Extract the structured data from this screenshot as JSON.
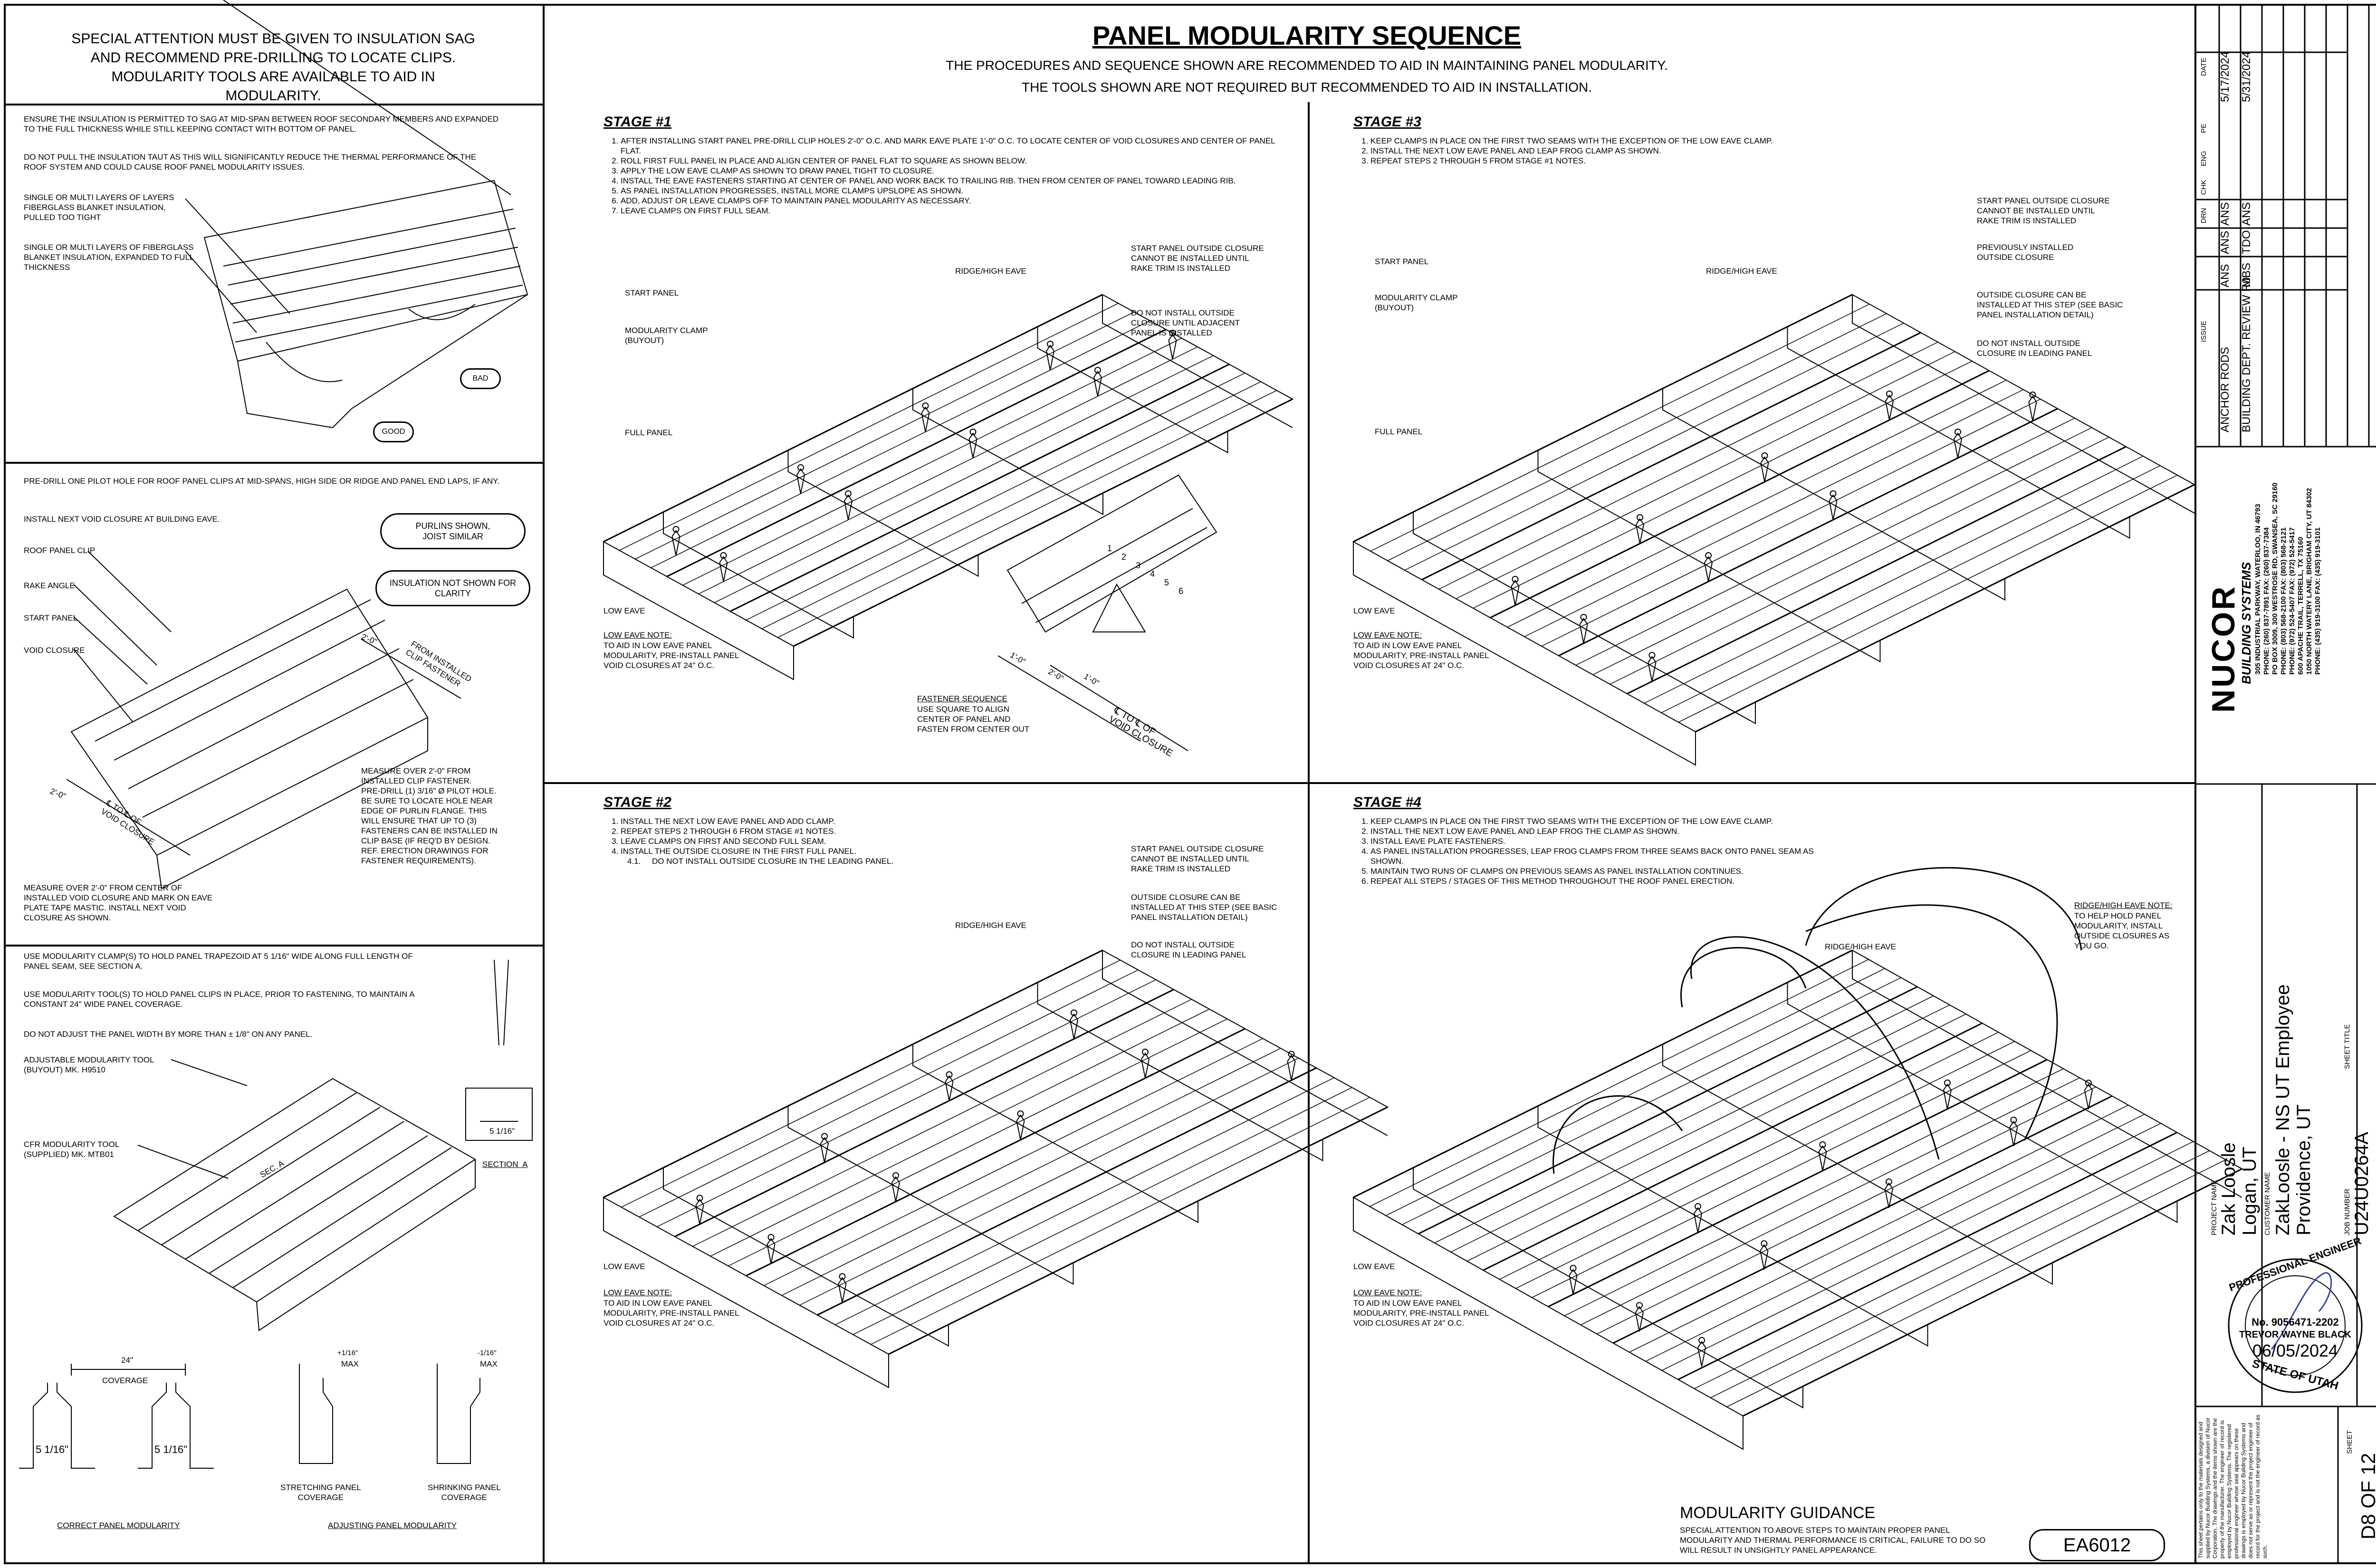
{
  "header": {
    "title": "PANEL MODULARITY SEQUENCE",
    "subtitle_line1": "THE PROCEDURES AND SEQUENCE SHOWN ARE RECOMMENDED TO AID IN MAINTAINING PANEL MODULARITY.",
    "subtitle_line2": "THE TOOLS SHOWN ARE NOT REQUIRED BUT RECOMMENDED TO AID IN INSTALLATION."
  },
  "left_panel": {
    "special_attention": "SPECIAL ATTENTION MUST BE GIVEN TO INSULATION SAG AND RECOMMEND PRE-DRILLING TO LOCATE CLIPS. MODULARITY TOOLS ARE AVAILABLE TO AID IN MODULARITY.",
    "insulation_note1": "ENSURE THE INSULATION IS PERMITTED TO SAG AT MID-SPAN BETWEEN ROOF SECONDARY MEMBERS AND EXPANDED TO THE FULL THICKNESS WHILE STILL KEEPING CONTACT WITH BOTTOM OF PANEL.",
    "insulation_note2": "DO NOT PULL THE INSULATION TAUT AS THIS WILL SIGNIFICANTLY REDUCE THE THERMAL PERFORMANCE OF THE ROOF SYSTEM AND COULD CAUSE ROOF PANEL MODULARITY ISSUES.",
    "callout_tight": "SINGLE OR MULTI LAYERS OF LAYERS\nFIBERGLASS BLANKET INSULATION,\nPULLED TOO TIGHT",
    "callout_expanded": "SINGLE OR MULTI LAYERS OF FIBERGLASS\nBLANKET INSULATION, EXPANDED TO FULL\nTHICKNESS",
    "bad_label": "BAD",
    "good_label": "GOOD",
    "predrill_note1": "PRE-DRILL ONE PILOT HOLE FOR ROOF PANEL CLIPS AT MID-SPANS, HIGH SIDE OR RIDGE AND PANEL END LAPS, IF ANY.",
    "predrill_note2": "INSTALL NEXT VOID CLOSURE AT BUILDING EAVE.",
    "bubble_purlins": "PURLINS SHOWN,\nJOIST SIMILAR",
    "bubble_insulation": "INSULATION NOT SHOWN FOR\nCLARITY",
    "label_roof_clip": "ROOF PANEL CLIP",
    "label_rake_angle": "RAKE ANGLE",
    "label_start_panel": "START PANEL",
    "label_void_closure": "VOID CLOSURE",
    "dim_from_clip_val": "2'-0\"",
    "dim_from_clip_text": "FROM INSTALLED\nCLIP FASTENER",
    "dim_void_val": "2'-0\"",
    "dim_void_text": "℄ TO ℄ OF\nVOID CLOSURE",
    "measure_clip_note": "MEASURE OVER 2'-0\" FROM\nINSTALLED CLIP FASTENER.\nPRE-DRILL (1) 3/16\" Ø PILOT HOLE.\nBE SURE TO LOCATE HOLE NEAR\nEDGE OF PURLIN FLANGE. THIS\nWILL ENSURE THAT UP TO (3)\nFASTENERS CAN BE INSTALLED IN\nCLIP BASE (IF REQ'D BY DESIGN.\nREF. ERECTION DRAWINGS FOR\nFASTENER REQUIREMENTS).",
    "measure_void_note": "MEASURE OVER 2'-0\" FROM CENTER OF\nINSTALLED VOID CLOSURE AND MARK ON EAVE\nPLATE TAPE MASTIC. INSTALL NEXT VOID\nCLOSURE AS SHOWN.",
    "clamp_note1": "USE MODULARITY CLAMP(S) TO HOLD PANEL TRAPEZOID AT 5 1/16\" WIDE ALONG FULL LENGTH OF PANEL SEAM, SEE SECTION A.",
    "clamp_note2": "USE MODULARITY TOOL(S) TO HOLD PANEL CLIPS IN PLACE, PRIOR TO FASTENING, TO MAINTAIN A CONSTANT 24\" WIDE PANEL COVERAGE.",
    "clamp_note3": "DO NOT ADJUST THE PANEL WIDTH BY MORE THAN ± 1/8\" ON ANY PANEL.",
    "label_adj_tool": "ADJUSTABLE MODULARITY TOOL\n(BUYOUT) MK. H9510",
    "label_cfr_tool": "CFR MODULARITY TOOL\n(SUPPLIED) MK. MTB01",
    "section_label": "SECTION  A",
    "section_dim": "5 1/16\"",
    "sec_a_tag": "SEC. A",
    "coverage_dim": "24\"",
    "coverage_label": "COVERAGE",
    "trap_dim": "5 1/16\"",
    "max_plus": "+1/16\"",
    "max_minus": "-1/16\"",
    "max_label": "MAX",
    "stretching_label": "STRETCHING PANEL\nCOVERAGE",
    "shrinking_label": "SHRINKING PANEL\nCOVERAGE",
    "correct_label": "CORRECT PANEL MODULARITY",
    "adjusting_label": "ADJUSTING PANEL MODULARITY"
  },
  "stage1": {
    "title": "STAGE #1",
    "steps": [
      "AFTER INSTALLING START PANEL PRE-DRILL CLIP HOLES 2'-0\" O.C. AND MARK EAVE PLATE 1'-0\" O.C. TO LOCATE CENTER OF VOID CLOSURES AND CENTER OF PANEL FLAT.",
      "ROLL FIRST FULL PANEL IN PLACE AND ALIGN CENTER OF PANEL FLAT TO SQUARE AS SHOWN BELOW.",
      "APPLY THE LOW EAVE CLAMP AS SHOWN TO DRAW PANEL TIGHT TO CLOSURE.",
      "INSTALL THE EAVE FASTENERS STARTING AT CENTER OF PANEL AND WORK BACK TO TRAILING RIB. THEN FROM CENTER OF PANEL TOWARD LEADING RIB.",
      "AS PANEL INSTALLATION PROGRESSES, INSTALL MORE CLAMPS UPSLOPE AS SHOWN.",
      "ADD, ADJUST OR LEAVE CLAMPS OFF TO MAINTAIN PANEL MODULARITY AS NECESSARY.",
      "LEAVE CLAMPS ON FIRST FULL SEAM."
    ],
    "label_ridge": "RIDGE/HIGH EAVE",
    "label_start_panel": "START PANEL",
    "label_mod_clamp": "MODULARITY CLAMP\n(BUYOUT)",
    "label_full_panel": "FULL PANEL",
    "label_low_eave": "LOW EAVE",
    "callout_start_closure": "START PANEL OUTSIDE CLOSURE\nCANNOT BE INSTALLED UNTIL\nRAKE TRIM IS INSTALLED",
    "callout_no_install": "DO NOT INSTALL OUTSIDE\nCLOSURE UNTIL ADJACENT\nPANEL IS INSTALLED",
    "low_eave_note_title": "LOW EAVE NOTE:",
    "low_eave_note": "TO AID IN LOW EAVE PANEL\nMODULARITY, PRE-INSTALL PANEL\nVOID CLOSURES AT 24\" O.C.",
    "fastener_title": "FASTENER SEQUENCE",
    "fastener_text": "USE SQUARE TO ALIGN\nCENTER OF PANEL AND\nFASTEN FROM CENTER OUT",
    "dim_1ft_a": "1'-0\"",
    "dim_1ft_b": "1'-0\"",
    "dim_2ft": "2'-0\"",
    "dim_void": "℄ TO ℄ OF\nVOID CLOSURE",
    "seq_numbers": [
      "1",
      "2",
      "3",
      "4",
      "5",
      "6"
    ]
  },
  "stage2": {
    "title": "STAGE #2",
    "steps": [
      "INSTALL THE NEXT LOW EAVE PANEL AND ADD CLAMP.",
      "REPEAT STEPS 2 THROUGH 6 FROM STAGE #1 NOTES.",
      "LEAVE CLAMPS ON FIRST AND SECOND FULL SEAM.",
      "INSTALL THE OUTSIDE CLOSURE IN THE FIRST FULL PANEL."
    ],
    "substep": "4.1.     DO NOT INSTALL OUTSIDE CLOSURE IN THE LEADING PANEL.",
    "label_ridge": "RIDGE/HIGH EAVE",
    "label_low_eave": "LOW EAVE",
    "callout_start_closure": "START PANEL OUTSIDE CLOSURE\nCANNOT BE INSTALLED UNTIL\nRAKE TRIM IS INSTALLED",
    "callout_can_install": "OUTSIDE CLOSURE CAN BE\nINSTALLED AT THIS STEP (SEE BASIC\nPANEL INSTALLATION DETAIL)",
    "callout_no_install": "DO NOT INSTALL OUTSIDE\nCLOSURE IN LEADING PANEL",
    "low_eave_note_title": "LOW EAVE NOTE:",
    "low_eave_note": "TO AID IN LOW EAVE PANEL\nMODULARITY, PRE-INSTALL PANEL\nVOID CLOSURES AT 24\" O.C."
  },
  "stage3": {
    "title": "STAGE #3",
    "steps": [
      "KEEP CLAMPS IN PLACE ON THE FIRST TWO SEAMS WITH THE EXCEPTION OF THE LOW EAVE CLAMP.",
      "INSTALL THE NEXT LOW EAVE PANEL AND LEAP FROG CLAMP AS SHOWN.",
      "REPEAT STEPS 2 THROUGH 5 FROM STAGE #1 NOTES."
    ],
    "label_start_panel": "START PANEL",
    "label_ridge": "RIDGE/HIGH EAVE",
    "label_mod_clamp": "MODULARITY CLAMP\n(BUYOUT)",
    "label_full_panel": "FULL PANEL",
    "label_low_eave": "LOW EAVE",
    "callout_start_closure": "START PANEL OUTSIDE CLOSURE\nCANNOT BE INSTALLED UNTIL\nRAKE TRIM IS INSTALLED",
    "callout_prev": "PREVIOUSLY INSTALLED\nOUTSIDE CLOSURE",
    "callout_can_install": "OUTSIDE CLOSURE CAN BE\nINSTALLED AT THIS STEP (SEE BASIC\nPANEL INSTALLATION DETAIL)",
    "callout_no_install": "DO NOT INSTALL OUTSIDE\nCLOSURE IN LEADING PANEL",
    "low_eave_note_title": "LOW EAVE NOTE:",
    "low_eave_note": "TO AID IN LOW EAVE PANEL\nMODULARITY, PRE-INSTALL PANEL\nVOID CLOSURES AT 24\" O.C."
  },
  "stage4": {
    "title": "STAGE #4",
    "steps": [
      "KEEP CLAMPS IN PLACE ON THE FIRST TWO SEAMS WITH THE EXCEPTION OF THE LOW EAVE CLAMP.",
      "INSTALL THE NEXT LOW EAVE PANEL AND LEAP FROG THE CLAMP AS SHOWN.",
      "INSTALL EAVE PLATE FASTENERS.",
      "AS PANEL INSTALLATION PROGRESSES, LEAP FROG CLAMPS FROM THREE SEAMS BACK ONTO PANEL SEAM AS SHOWN.",
      "MAINTAIN TWO RUNS OF CLAMPS ON PREVIOUS SEAMS AS PANEL INSTALLATION CONTINUES.",
      "REPEAT ALL STEPS / STAGES OF THIS METHOD THROUGHOUT THE ROOF PANEL ERECTION."
    ],
    "label_ridge": "RIDGE/HIGH EAVE",
    "label_low_eave": "LOW EAVE",
    "ridge_note_title": "RIDGE/HIGH EAVE NOTE:",
    "ridge_note": "TO HELP HOLD PANEL\nMODULARITY, INSTALL\nOUTSIDE CLOSURES AS\nYOU GO.",
    "low_eave_note_title": "LOW EAVE NOTE:",
    "low_eave_note": "TO AID IN LOW EAVE PANEL\nMODULARITY, PRE-INSTALL PANEL\nVOID CLOSURES AT 24\" O.C."
  },
  "guidance": {
    "title": "MODULARITY GUIDANCE",
    "text": "SPECIAL ATTENTION TO ABOVE STEPS TO MAINTAIN PROPER PANEL\nMODULARITY AND THERMAL PERFORMANCE IS CRITICAL, FAILURE TO DO SO\nWILL RESULT IN UNSIGHTLY PANEL APPEARANCE.",
    "drawing_code": "EA6012"
  },
  "title_block": {
    "rev_header_issue": "ISSUE",
    "rev_header_drn": "DRN",
    "rev_header_chk": "CHK",
    "rev_header_eng": "ENG",
    "rev_header_pe": "PE",
    "rev_header_date": "DATE",
    "revisions": [
      {
        "issue": "ANCHOR RODS",
        "drn": "ANS",
        "chk": "ANS",
        "eng": "ANS",
        "date": "5/17/2024"
      },
      {
        "issue": "BUILDING DEPT. REVIEW R0",
        "drn": "MBS",
        "chk": "TDO",
        "eng": "ANS",
        "date": "5/31/2024"
      }
    ],
    "company": "NUCOR",
    "company_sub": "BUILDING SYSTEMS",
    "addresses": [
      "305 INDUSTRIAL PARKWAY, WATERLOO, IN  46793",
      "PHONE: (260) 837-7891  FAX: (260) 837-7384",
      "PO BOX 3009, 300 WESTROSE RD, SWANSEA, SC 29160",
      "PHONE: (803) 568-2100  FAX: (803) 568-2121",
      "PHONE: (972) 524-5407  FAX: (972) 524-5417",
      "600 APACHE TRAIL, TERRELL, TX 75160",
      "1050 NORTH WATERY LANE, BRIGHAM CITY, UT 84302",
      "PHONE: (435) 919-3100  FAX: (435) 919-3101"
    ],
    "project_name_label": "PROJECT NAME",
    "project_name": "Zak Loosle",
    "project_city": "Logan, UT",
    "customer_label": "CUSTOMER NAME",
    "customer_name": "ZakLoosle - NS UT Employee",
    "customer_city": "Providence, UT",
    "sheet_title_label": "SHEET TITLE",
    "job_label": "JOB NUMBER",
    "job_number": "U24U0264A",
    "stamp_top": "PROFESSIONAL ENGINEER",
    "stamp_no": "No. 9056471-2202",
    "stamp_name": "TREVOR WAYNE BLACK",
    "stamp_date": "06/05/2024",
    "stamp_state": "STATE OF UTAH",
    "disclaimer": "This sheet pertains only to the materials designed and supplied by Nucor Building Systems, a division of Nucor Corporation. The drawings and the items shown are the property of the manufacturer. The engineer of record is employed by Nucor Building Systems. The registered professional engineer whose seal appears on these drawings is employed by Nucor Building Systems and does not serve as or represent the project engineer of record for the project and is not the engineer of record as such.",
    "sheet_label": "SHEET",
    "sheet_number": "D8 OF 12"
  }
}
